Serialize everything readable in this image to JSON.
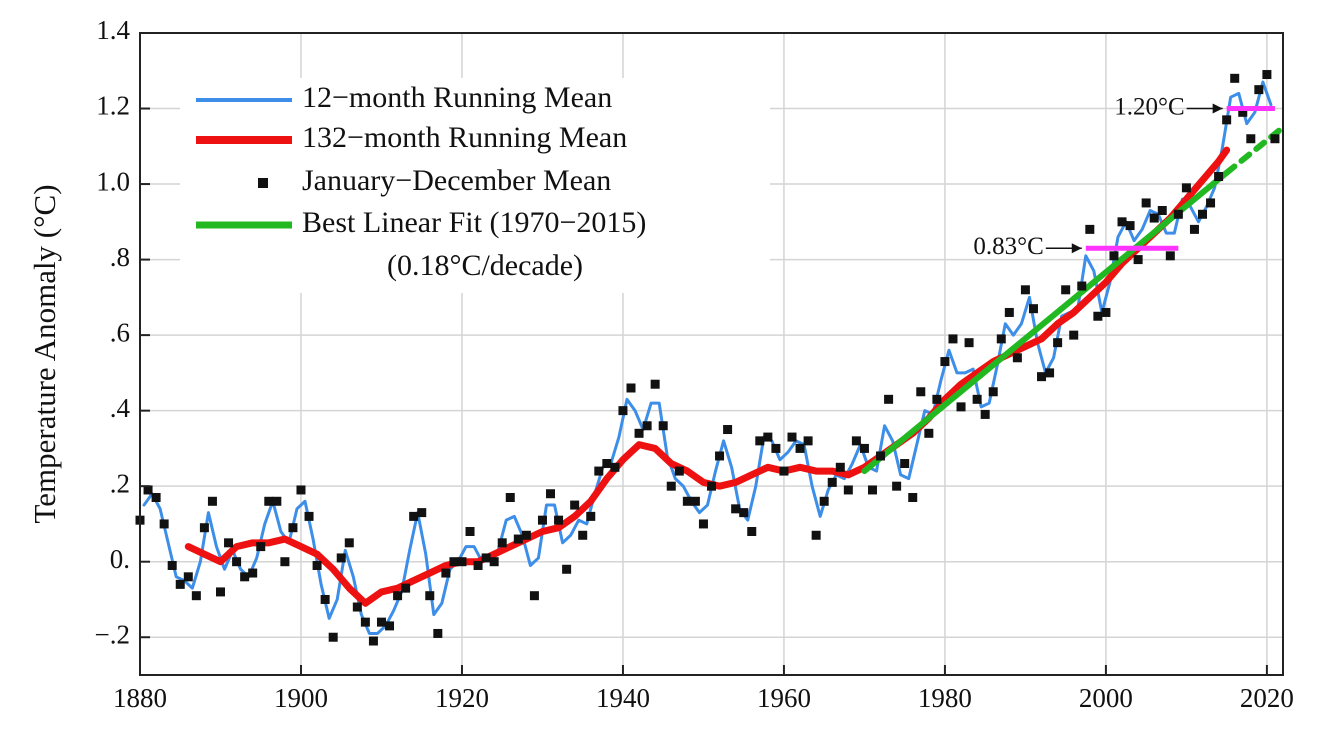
{
  "chart_data": {
    "type": "line",
    "y_label": "Temperature Anomaly (°C)",
    "xlim": [
      1880,
      2022
    ],
    "ylim": [
      -0.3,
      1.4
    ],
    "xticks": [
      1880,
      1900,
      1920,
      1940,
      1960,
      1980,
      2000,
      2020
    ],
    "yticks": [
      1.4,
      1.2,
      {
        "value": 1,
        "label": "1.0"
      },
      {
        "value": 0.8,
        "label": ".8"
      },
      {
        "value": 0.6,
        "label": ".6"
      },
      {
        "value": 0.4,
        "label": ".4"
      },
      {
        "value": 0.2,
        "label": ".2"
      },
      {
        "value": 0,
        "label": "0."
      },
      {
        "value": -0.2,
        "label": "−.2"
      }
    ],
    "grid": true,
    "legend": "upper left",
    "fit_note": "(0.18°C/decade)",
    "series": [
      {
        "name": "12−month Running Mean",
        "kind": "line",
        "color": "#3d8ee8",
        "width": 3,
        "x": [
          1880.5,
          1881.5,
          1882.5,
          1883.5,
          1884.5,
          1885.5,
          1886.5,
          1887.5,
          1888.5,
          1889.5,
          1890.5,
          1891.5,
          1892.5,
          1893.5,
          1894.5,
          1895.5,
          1896.5,
          1897.5,
          1898.5,
          1899.5,
          1900.5,
          1901.5,
          1902.5,
          1903.5,
          1904.5,
          1905.5,
          1906.5,
          1907.5,
          1908.5,
          1909.5,
          1910.5,
          1911.5,
          1912.5,
          1913.5,
          1914.5,
          1915.5,
          1916.5,
          1917.5,
          1918.5,
          1919.5,
          1920.5,
          1921.5,
          1922.5,
          1923.5,
          1924.5,
          1925.5,
          1926.5,
          1927.5,
          1928.5,
          1929.5,
          1930.5,
          1931.5,
          1932.5,
          1933.5,
          1934.5,
          1935.5,
          1936.5,
          1937.5,
          1938.5,
          1939.5,
          1940.5,
          1941.5,
          1942.5,
          1943.5,
          1944.5,
          1945.5,
          1946.5,
          1947.5,
          1948.5,
          1949.5,
          1950.5,
          1951.5,
          1952.5,
          1953.5,
          1954.5,
          1955.5,
          1956.5,
          1957.5,
          1958.5,
          1959.5,
          1960.5,
          1961.5,
          1962.5,
          1963.5,
          1964.5,
          1965.5,
          1966.5,
          1967.5,
          1968.5,
          1969.5,
          1970.5,
          1971.5,
          1972.5,
          1973.5,
          1974.5,
          1975.5,
          1976.5,
          1977.5,
          1978.5,
          1979.5,
          1980.5,
          1981.5,
          1982.5,
          1983.5,
          1984.5,
          1985.5,
          1986.5,
          1987.5,
          1988.5,
          1989.5,
          1990.5,
          1991.5,
          1992.5,
          1993.5,
          1994.5,
          1995.5,
          1996.5,
          1997.5,
          1998.5,
          1999.5,
          2000.5,
          2001.5,
          2002.5,
          2003.5,
          2004.5,
          2005.5,
          2006.5,
          2007.5,
          2008.5,
          2009.5,
          2010.5,
          2011.5,
          2012.5,
          2013.5,
          2014.5,
          2015.5,
          2016.5,
          2017.5,
          2018.5,
          2019.5,
          2020.5
        ],
        "values": [
          0.15,
          0.18,
          0.14,
          0.05,
          -0.04,
          -0.05,
          -0.07,
          0.0,
          0.13,
          0.04,
          -0.02,
          0.03,
          -0.02,
          -0.04,
          0.01,
          0.1,
          0.16,
          0.08,
          0.05,
          0.14,
          0.16,
          0.06,
          -0.06,
          -0.15,
          -0.1,
          0.03,
          -0.04,
          -0.14,
          -0.19,
          -0.19,
          -0.17,
          -0.13,
          -0.08,
          0.03,
          0.13,
          0.02,
          -0.14,
          -0.11,
          -0.02,
          0.0,
          0.04,
          0.04,
          0.0,
          0.01,
          0.03,
          0.11,
          0.12,
          0.07,
          -0.01,
          0.01,
          0.15,
          0.15,
          0.05,
          0.07,
          0.11,
          0.1,
          0.18,
          0.25,
          0.26,
          0.33,
          0.43,
          0.4,
          0.35,
          0.42,
          0.42,
          0.28,
          0.22,
          0.2,
          0.16,
          0.13,
          0.15,
          0.24,
          0.32,
          0.25,
          0.14,
          0.11,
          0.2,
          0.33,
          0.32,
          0.27,
          0.29,
          0.32,
          0.31,
          0.2,
          0.12,
          0.19,
          0.23,
          0.22,
          0.26,
          0.31,
          0.25,
          0.24,
          0.36,
          0.32,
          0.23,
          0.22,
          0.31,
          0.4,
          0.39,
          0.48,
          0.56,
          0.5,
          0.5,
          0.51,
          0.41,
          0.42,
          0.52,
          0.63,
          0.6,
          0.63,
          0.7,
          0.58,
          0.5,
          0.54,
          0.65,
          0.66,
          0.67,
          0.81,
          0.77,
          0.66,
          0.74,
          0.86,
          0.9,
          0.85,
          0.88,
          0.93,
          0.92,
          0.87,
          0.87,
          0.96,
          0.94,
          0.9,
          0.94,
          0.99,
          1.1,
          1.23,
          1.24,
          1.16,
          1.19,
          1.27,
          1.21
        ]
      },
      {
        "name": "132−month Running Mean",
        "kind": "line",
        "color": "#ee1111",
        "width": 7,
        "x": [
          1886,
          1888,
          1890,
          1892,
          1894,
          1896,
          1898,
          1900,
          1902,
          1904,
          1906,
          1908,
          1910,
          1912,
          1914,
          1916,
          1918,
          1920,
          1922,
          1924,
          1926,
          1928,
          1930,
          1932,
          1934,
          1936,
          1938,
          1940,
          1942,
          1944,
          1946,
          1948,
          1950,
          1952,
          1954,
          1956,
          1958,
          1960,
          1962,
          1964,
          1966,
          1968,
          1970,
          1972,
          1974,
          1976,
          1978,
          1980,
          1982,
          1984,
          1986,
          1988,
          1990,
          1992,
          1994,
          1996,
          1998,
          2000,
          2002,
          2004,
          2006,
          2008,
          2010,
          2012,
          2014,
          2015
        ],
        "values": [
          0.04,
          0.02,
          0.0,
          0.04,
          0.05,
          0.05,
          0.06,
          0.04,
          0.02,
          -0.02,
          -0.07,
          -0.11,
          -0.08,
          -0.07,
          -0.05,
          -0.03,
          -0.01,
          0.0,
          0.0,
          0.02,
          0.04,
          0.06,
          0.08,
          0.09,
          0.12,
          0.16,
          0.22,
          0.27,
          0.31,
          0.3,
          0.26,
          0.24,
          0.21,
          0.2,
          0.21,
          0.23,
          0.25,
          0.24,
          0.25,
          0.24,
          0.24,
          0.23,
          0.25,
          0.28,
          0.31,
          0.34,
          0.38,
          0.43,
          0.47,
          0.5,
          0.53,
          0.55,
          0.57,
          0.59,
          0.63,
          0.66,
          0.7,
          0.74,
          0.79,
          0.83,
          0.87,
          0.91,
          0.96,
          1.01,
          1.06,
          1.09
        ]
      },
      {
        "name": "January−December Mean",
        "kind": "points",
        "color": "#111111",
        "x": [
          1880,
          1881,
          1882,
          1883,
          1884,
          1885,
          1886,
          1887,
          1888,
          1889,
          1890,
          1891,
          1892,
          1893,
          1894,
          1895,
          1896,
          1897,
          1898,
          1899,
          1900,
          1901,
          1902,
          1903,
          1904,
          1905,
          1906,
          1907,
          1908,
          1909,
          1910,
          1911,
          1912,
          1913,
          1914,
          1915,
          1916,
          1917,
          1918,
          1919,
          1920,
          1921,
          1922,
          1923,
          1924,
          1925,
          1926,
          1927,
          1928,
          1929,
          1930,
          1931,
          1932,
          1933,
          1934,
          1935,
          1936,
          1937,
          1938,
          1939,
          1940,
          1941,
          1942,
          1943,
          1944,
          1945,
          1946,
          1947,
          1948,
          1949,
          1950,
          1951,
          1952,
          1953,
          1954,
          1955,
          1956,
          1957,
          1958,
          1959,
          1960,
          1961,
          1962,
          1963,
          1964,
          1965,
          1966,
          1967,
          1968,
          1969,
          1970,
          1971,
          1972,
          1973,
          1974,
          1975,
          1976,
          1977,
          1978,
          1979,
          1980,
          1981,
          1982,
          1983,
          1984,
          1985,
          1986,
          1987,
          1988,
          1989,
          1990,
          1991,
          1992,
          1993,
          1994,
          1995,
          1996,
          1997,
          1998,
          1999,
          2000,
          2001,
          2002,
          2003,
          2004,
          2005,
          2006,
          2007,
          2008,
          2009,
          2010,
          2011,
          2012,
          2013,
          2014,
          2015,
          2016,
          2017,
          2018,
          2019,
          2020,
          2021
        ],
        "values": [
          0.11,
          0.19,
          0.17,
          0.1,
          -0.01,
          -0.06,
          -0.04,
          -0.09,
          0.09,
          0.16,
          -0.08,
          0.05,
          0.0,
          -0.04,
          -0.03,
          0.04,
          0.16,
          0.16,
          0.0,
          0.09,
          0.19,
          0.12,
          -0.01,
          -0.1,
          -0.2,
          0.01,
          0.05,
          -0.12,
          -0.16,
          -0.21,
          -0.16,
          -0.17,
          -0.09,
          -0.07,
          0.12,
          0.13,
          -0.09,
          -0.19,
          -0.03,
          0.0,
          0.0,
          0.08,
          -0.01,
          0.01,
          0.0,
          0.05,
          0.17,
          0.06,
          0.07,
          -0.09,
          0.11,
          0.18,
          0.11,
          -0.02,
          0.15,
          0.07,
          0.12,
          0.24,
          0.26,
          0.25,
          0.4,
          0.46,
          0.34,
          0.36,
          0.47,
          0.36,
          0.2,
          0.24,
          0.16,
          0.16,
          0.1,
          0.2,
          0.28,
          0.35,
          0.14,
          0.13,
          0.08,
          0.32,
          0.33,
          0.3,
          0.24,
          0.33,
          0.3,
          0.32,
          0.07,
          0.16,
          0.21,
          0.25,
          0.19,
          0.32,
          0.3,
          0.19,
          0.28,
          0.43,
          0.2,
          0.26,
          0.17,
          0.45,
          0.34,
          0.43,
          0.53,
          0.59,
          0.41,
          0.58,
          0.43,
          0.39,
          0.45,
          0.59,
          0.66,
          0.54,
          0.72,
          0.67,
          0.49,
          0.5,
          0.58,
          0.72,
          0.6,
          0.73,
          0.88,
          0.65,
          0.66,
          0.81,
          0.9,
          0.89,
          0.8,
          0.95,
          0.91,
          0.93,
          0.81,
          0.92,
          0.99,
          0.88,
          0.92,
          0.95,
          1.02,
          1.17,
          1.28,
          1.19,
          1.12,
          1.25,
          1.29,
          1.12
        ]
      },
      {
        "name": "Best Linear Fit (1970−2015)",
        "kind": "line",
        "color": "#22b822",
        "width": 6,
        "x": [
          1970,
          2015
        ],
        "values": [
          0.24,
          1.03
        ],
        "extension_x": [
          2015,
          2022
        ],
        "extension_values": [
          1.03,
          1.15
        ]
      }
    ],
    "annotations": [
      {
        "text": "0.83°C",
        "value": 0.83,
        "x_start": 1997.5,
        "x_end": 2009,
        "color": "#ff33ff"
      },
      {
        "text": "1.20°C",
        "value": 1.2,
        "x_start": 2015,
        "x_end": 2021,
        "color": "#ff33ff"
      }
    ]
  }
}
